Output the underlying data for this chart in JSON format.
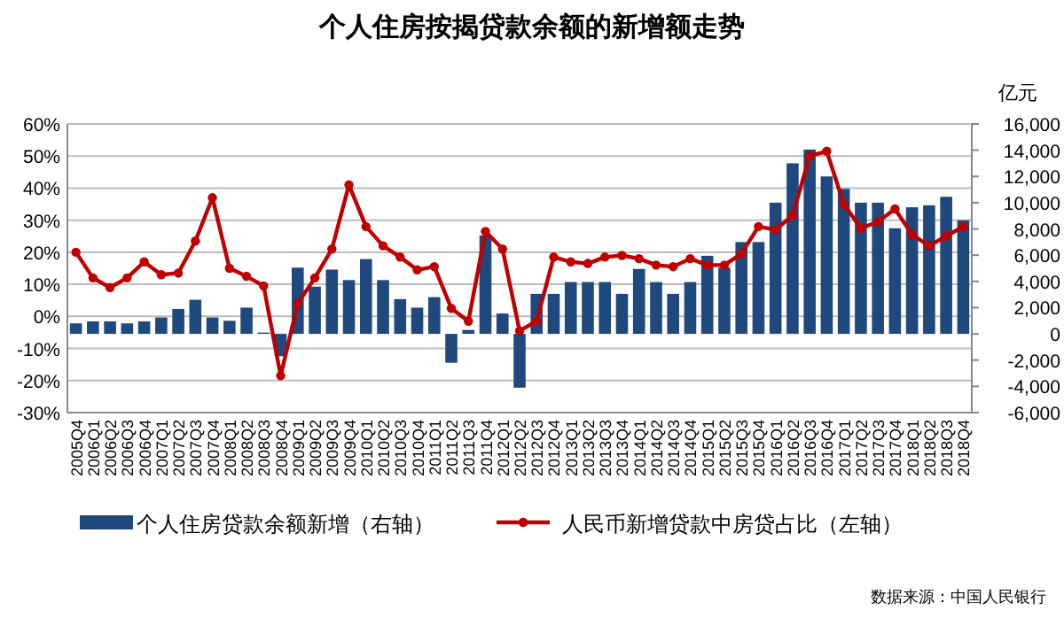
{
  "chart_data": {
    "type": "bar",
    "title": "个人住房按揭贷款余额的新增额走势",
    "y2label": "亿元",
    "categories": [
      "2005Q4",
      "2006Q1",
      "2006Q2",
      "2006Q3",
      "2006Q4",
      "2007Q1",
      "2007Q2",
      "2007Q3",
      "2007Q4",
      "2008Q1",
      "2008Q2",
      "2008Q3",
      "2008Q4",
      "2009Q1",
      "2009Q2",
      "2009Q3",
      "2009Q4",
      "2010Q1",
      "2010Q2",
      "2010Q3",
      "2010Q4",
      "2011Q1",
      "2011Q2",
      "2011Q3",
      "2011Q4",
      "2012Q1",
      "2012Q2",
      "2012Q3",
      "2012Q4",
      "2013Q1",
      "2013Q2",
      "2013Q3",
      "2013Q4",
      "2014Q1",
      "2014Q2",
      "2014Q3",
      "2014Q4",
      "2015Q1",
      "2015Q2",
      "2015Q3",
      "2015Q4",
      "2016Q1",
      "2016Q2",
      "2016Q3",
      "2016Q4",
      "2017Q1",
      "2017Q2",
      "2017Q3",
      "2017Q4",
      "2018Q1",
      "2018Q2",
      "2018Q3",
      "2018Q4"
    ],
    "series": [
      {
        "name": "个人住房贷款余额新增（右轴）",
        "axis": "y2",
        "color": "#1f497d",
        "values": [
          800,
          950,
          950,
          800,
          950,
          1250,
          1900,
          2600,
          1250,
          1000,
          2000,
          100,
          -1700,
          5050,
          3600,
          4900,
          4100,
          5700,
          4100,
          2650,
          2000,
          2800,
          -2200,
          300,
          7500,
          1550,
          -4100,
          3050,
          3050,
          3950,
          3950,
          3950,
          3050,
          4950,
          3950,
          3050,
          3950,
          5950,
          5050,
          7000,
          7000,
          10000,
          13000,
          14050,
          12000,
          11050,
          10000,
          10000,
          8050,
          9650,
          9800,
          10450,
          8650
        ]
      },
      {
        "name": "人民币新增贷款中房贷占比（左轴）",
        "type": "line",
        "axis": "y",
        "color": "#c00000",
        "marker": "circle",
        "values": [
          20,
          12,
          9,
          12,
          17,
          13,
          13.5,
          23.5,
          37,
          15,
          12.5,
          9.5,
          -18.5,
          4,
          12,
          21,
          41,
          28,
          22,
          18.5,
          14.5,
          15.5,
          2.5,
          -1.5,
          26.5,
          21,
          -4.5,
          -1.5,
          18.5,
          17,
          16.5,
          18.5,
          19,
          18,
          16,
          15.5,
          18,
          16,
          16,
          19.5,
          28,
          27,
          31.5,
          50,
          51.5,
          35,
          27.5,
          29.5,
          33.5,
          25.5,
          22,
          25,
          28
        ]
      }
    ],
    "ylim": [
      -30,
      60
    ],
    "yticks": [
      {
        "value": -30,
        "label": "-30%"
      },
      {
        "value": -20,
        "label": "-20%"
      },
      {
        "value": -10,
        "label": "-10%"
      },
      {
        "value": 0,
        "label": "0%"
      },
      {
        "value": 10,
        "label": "10%"
      },
      {
        "value": 20,
        "label": "20%"
      },
      {
        "value": 30,
        "label": "30%"
      },
      {
        "value": 40,
        "label": "40%"
      },
      {
        "value": 50,
        "label": "50%"
      },
      {
        "value": 60,
        "label": "60%"
      }
    ],
    "y2lim": [
      -6000,
      16000
    ],
    "y2ticks": [
      {
        "value": -6000,
        "label": "-6,000"
      },
      {
        "value": -4000,
        "label": "-4,000"
      },
      {
        "value": -2000,
        "label": "-2,000"
      },
      {
        "value": 0,
        "label": "0"
      },
      {
        "value": 2000,
        "label": "2,000"
      },
      {
        "value": 4000,
        "label": "4,000"
      },
      {
        "value": 6000,
        "label": "6,000"
      },
      {
        "value": 8000,
        "label": "8,000"
      },
      {
        "value": 10000,
        "label": "10,000"
      },
      {
        "value": 12000,
        "label": "12,000"
      },
      {
        "value": 14000,
        "label": "14,000"
      },
      {
        "value": 16000,
        "label": "16,000"
      }
    ],
    "grid": "y",
    "legend": "bottom",
    "annotations": [
      "数据来源：中国人民银行"
    ]
  }
}
